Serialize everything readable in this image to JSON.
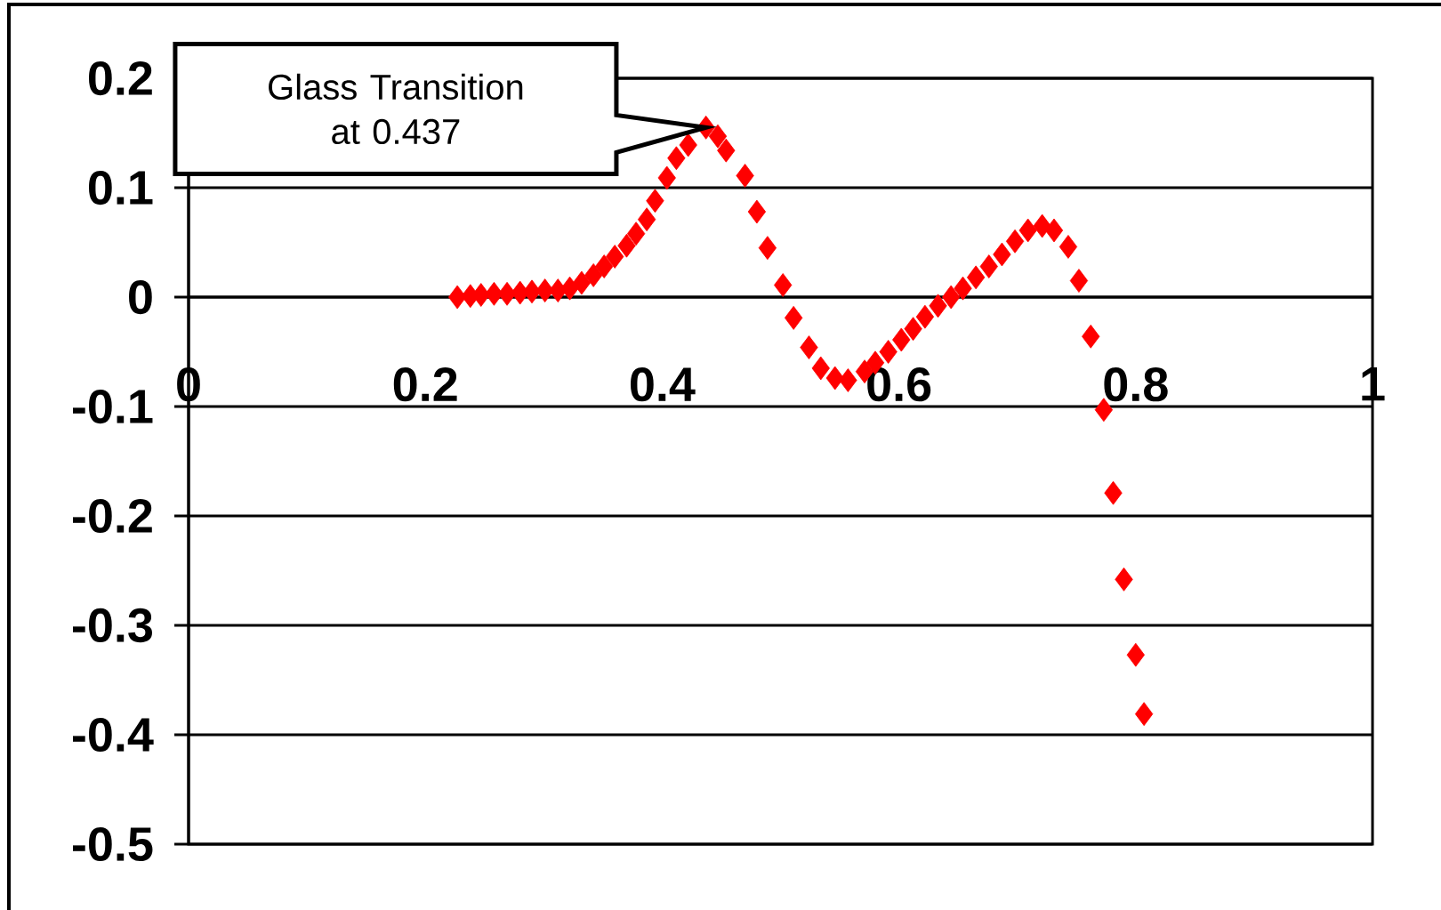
{
  "chart_data": {
    "type": "scatter",
    "color": "#ff0000",
    "marker": "diamond",
    "grid": "y",
    "xlim": [
      0,
      1
    ],
    "ylim": [
      -0.5,
      0.2
    ],
    "xticks": [
      0,
      0.2,
      0.4,
      0.6,
      0.8,
      1
    ],
    "yticks": [
      -0.5,
      -0.4,
      -0.3,
      -0.2,
      -0.1,
      0,
      0.1,
      0.2
    ],
    "annotations": [
      "Glass Transition at 0.437"
    ],
    "x": [
      0.227,
      0.238,
      0.247,
      0.258,
      0.269,
      0.28,
      0.29,
      0.301,
      0.312,
      0.322,
      0.332,
      0.342,
      0.351,
      0.36,
      0.37,
      0.378,
      0.387,
      0.394,
      0.404,
      0.412,
      0.422,
      0.437,
      0.447,
      0.454,
      0.47,
      0.48,
      0.489,
      0.502,
      0.511,
      0.524,
      0.534,
      0.546,
      0.557,
      0.571,
      0.58,
      0.591,
      0.602,
      0.612,
      0.622,
      0.633,
      0.644,
      0.654,
      0.665,
      0.676,
      0.687,
      0.698,
      0.709,
      0.721,
      0.731,
      0.743,
      0.752,
      0.762,
      0.773,
      0.781,
      0.79,
      0.8,
      0.807
    ],
    "values": [
      0,
      0.001,
      0.002,
      0.003,
      0.003,
      0.004,
      0.005,
      0.006,
      0.006,
      0.008,
      0.013,
      0.02,
      0.028,
      0.037,
      0.047,
      0.058,
      0.071,
      0.088,
      0.109,
      0.127,
      0.139,
      0.155,
      0.147,
      0.134,
      0.111,
      0.078,
      0.045,
      0.011,
      -0.019,
      -0.046,
      -0.065,
      -0.074,
      -0.076,
      -0.068,
      -0.06,
      -0.05,
      -0.039,
      -0.029,
      -0.018,
      -0.008,
      0,
      0.008,
      0.018,
      0.028,
      0.039,
      0.051,
      0.061,
      0.065,
      0.061,
      0.046,
      0.015,
      -0.036,
      -0.103,
      -0.179,
      -0.258,
      -0.327,
      -0.381
    ]
  }
}
